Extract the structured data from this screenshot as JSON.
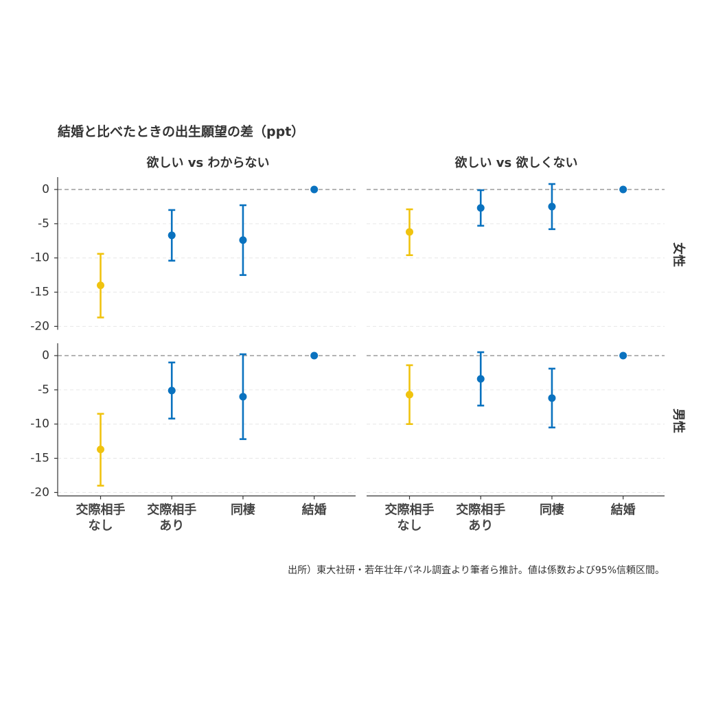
{
  "chart_data": {
    "type": "scatter",
    "title": "結婚と比べたときの出生願望の差（ppt）",
    "caption": "出所）東大社研・若年壮年パネル調査より筆者ら推計。値は係数および95%信頼区間。",
    "columns": [
      "欲しい vs わからない",
      "欲しい vs 欲しくない"
    ],
    "rows": [
      "女性",
      "男性"
    ],
    "categories": [
      {
        "line1": "交際相手",
        "line2": "なし"
      },
      {
        "line1": "交際相手",
        "line2": "あり"
      },
      {
        "line1": "同棲",
        "line2": ""
      },
      {
        "line1": "結婚",
        "line2": ""
      }
    ],
    "ylim": [
      -20.5,
      2
    ],
    "yticks": [
      "0",
      "-5",
      "-10",
      "-15",
      "-20"
    ],
    "reference_line": 0,
    "grid": "horizontal dashed",
    "colors": {
      "no_partner": "#F0C30F",
      "other": "#0A72BF",
      "ref_line": "#888888",
      "grid": "#E6E6E6"
    },
    "panels": [
      {
        "column": "欲しい vs わからない",
        "row": "女性",
        "points": [
          {
            "category": "交際相手なし",
            "estimate": -14.0,
            "ci_low": -18.7,
            "ci_high": -9.4
          },
          {
            "category": "交際相手あり",
            "estimate": -6.7,
            "ci_low": -10.4,
            "ci_high": -3.0
          },
          {
            "category": "同棲",
            "estimate": -7.4,
            "ci_low": -12.5,
            "ci_high": -2.3
          },
          {
            "category": "結婚",
            "estimate": 0,
            "ci_low": 0,
            "ci_high": 0
          }
        ]
      },
      {
        "column": "欲しい vs 欲しくない",
        "row": "女性",
        "points": [
          {
            "category": "交際相手なし",
            "estimate": -6.2,
            "ci_low": -9.6,
            "ci_high": -2.9
          },
          {
            "category": "交際相手あり",
            "estimate": -2.7,
            "ci_low": -5.3,
            "ci_high": -0.1
          },
          {
            "category": "同棲",
            "estimate": -2.5,
            "ci_low": -5.8,
            "ci_high": 0.8
          },
          {
            "category": "結婚",
            "estimate": 0,
            "ci_low": 0,
            "ci_high": 0
          }
        ]
      },
      {
        "column": "欲しい vs わからない",
        "row": "男性",
        "points": [
          {
            "category": "交際相手なし",
            "estimate": -13.7,
            "ci_low": -19.0,
            "ci_high": -8.5
          },
          {
            "category": "交際相手あり",
            "estimate": -5.1,
            "ci_low": -9.2,
            "ci_high": -1.0
          },
          {
            "category": "同棲",
            "estimate": -6.0,
            "ci_low": -12.2,
            "ci_high": 0.2
          },
          {
            "category": "結婚",
            "estimate": 0,
            "ci_low": 0,
            "ci_high": 0
          }
        ]
      },
      {
        "column": "欲しい vs 欲しくない",
        "row": "男性",
        "points": [
          {
            "category": "交際相手なし",
            "estimate": -5.7,
            "ci_low": -10.0,
            "ci_high": -1.4
          },
          {
            "category": "交際相手あり",
            "estimate": -3.4,
            "ci_low": -7.3,
            "ci_high": 0.5
          },
          {
            "category": "同棲",
            "estimate": -6.2,
            "ci_low": -10.5,
            "ci_high": -1.9
          },
          {
            "category": "結婚",
            "estimate": 0,
            "ci_low": 0,
            "ci_high": 0
          }
        ]
      }
    ]
  }
}
